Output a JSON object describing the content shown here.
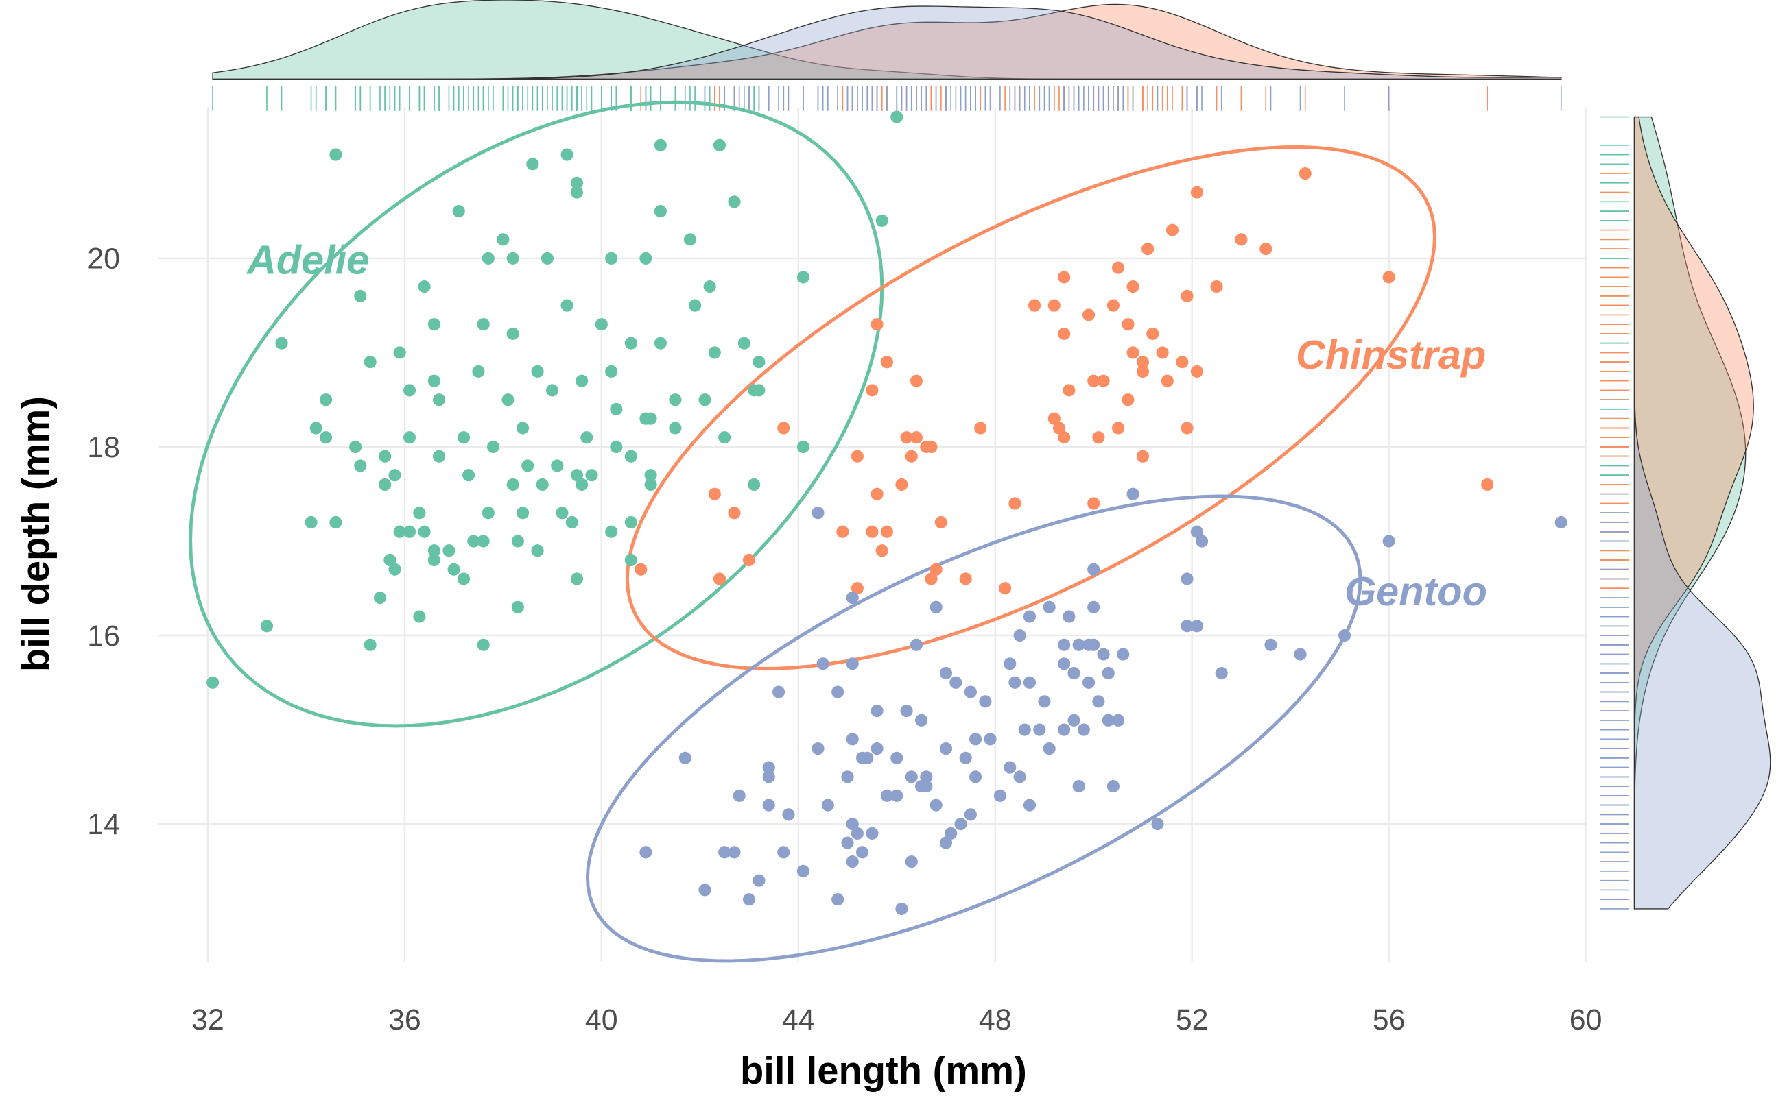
{
  "chart_data": {
    "type": "scatter",
    "x_label": "bill length (mm)",
    "y_label": "bill depth (mm)",
    "xlim": [
      31,
      60
    ],
    "ylim": [
      12.3,
      21.6
    ],
    "xticks": [
      32,
      36,
      40,
      44,
      48,
      52,
      56,
      60
    ],
    "yticks": [
      14,
      16,
      18,
      20
    ],
    "grid": true,
    "series": [
      {
        "name": "Adelie",
        "color": "#66c2a5",
        "x": [
          32.1,
          34.6,
          38.6,
          39.3,
          41.2,
          42.4,
          39.5,
          39.5,
          37.1,
          41.2,
          42.7,
          38.0,
          41.8,
          37.7,
          38.2,
          38.9,
          40.2,
          40.9,
          44.1,
          35.1,
          36.4,
          42.2,
          41.9,
          39.3,
          33.5,
          35.9,
          35.3,
          36.6,
          37.6,
          38.2,
          40.0,
          40.6,
          41.2,
          42.9,
          42.3,
          43.2,
          34.4,
          36.1,
          36.6,
          36.7,
          37.5,
          38.1,
          38.7,
          39.0,
          39.6,
          40.2,
          40.3,
          40.9,
          41.0,
          41.5,
          42.1,
          43.1,
          43.2,
          34.2,
          34.4,
          35.0,
          36.1,
          36.7,
          37.2,
          37.8,
          38.4,
          39.7,
          40.3,
          40.6,
          41.5,
          42.5,
          44.1,
          35.1,
          35.6,
          35.8,
          37.3,
          38.5,
          39.1,
          39.5,
          39.8,
          41.0,
          35.6,
          36.3,
          38.2,
          38.8,
          39.6,
          41.0,
          43.1,
          34.1,
          34.6,
          35.9,
          36.1,
          36.4,
          37.7,
          38.4,
          39.2,
          39.4,
          40.2,
          40.6,
          36.9,
          36.6,
          37.4,
          37.6,
          38.3,
          38.7,
          35.7,
          37.0,
          36.6,
          40.6,
          37.2,
          39.5,
          35.8,
          35.5,
          38.3,
          36.3,
          33.2,
          35.3,
          37.6,
          46.0,
          45.7,
          45.8
        ],
        "values": [
          15.5,
          21.1,
          21.0,
          21.1,
          21.2,
          21.2,
          20.8,
          20.7,
          20.5,
          20.5,
          20.6,
          20.2,
          20.2,
          20.0,
          20.0,
          20.0,
          20.0,
          20.0,
          19.8,
          19.6,
          19.7,
          19.7,
          19.5,
          19.5,
          19.1,
          19.0,
          18.9,
          19.3,
          19.3,
          19.2,
          19.3,
          19.1,
          19.1,
          19.1,
          19.0,
          18.9,
          18.5,
          18.6,
          18.7,
          18.5,
          18.8,
          18.5,
          18.8,
          18.6,
          18.7,
          18.8,
          18.4,
          18.3,
          18.3,
          18.5,
          18.5,
          18.6,
          18.6,
          18.2,
          18.1,
          18.0,
          18.1,
          17.9,
          18.1,
          18.0,
          18.2,
          18.1,
          18.0,
          17.9,
          18.2,
          18.1,
          18.0,
          17.8,
          17.9,
          17.7,
          17.7,
          17.8,
          17.8,
          17.7,
          17.7,
          17.7,
          17.6,
          17.3,
          17.6,
          17.6,
          17.6,
          17.6,
          17.6,
          17.2,
          17.2,
          17.1,
          17.1,
          17.1,
          17.3,
          17.3,
          17.3,
          17.2,
          17.1,
          17.2,
          16.9,
          16.9,
          17.0,
          17.0,
          17.0,
          16.9,
          16.8,
          16.7,
          16.8,
          16.8,
          16.6,
          16.6,
          16.7,
          16.4,
          16.3,
          16.2,
          16.1,
          15.9,
          15.9,
          21.5,
          20.4,
          18.9
        ]
      },
      {
        "name": "Chinstrap",
        "color": "#fc8d62",
        "x": [
          54.3,
          52.1,
          51.6,
          51.1,
          53.0,
          53.5,
          56.0,
          49.4,
          50.5,
          50.8,
          51.9,
          52.5,
          48.8,
          49.2,
          49.9,
          50.4,
          50.7,
          51.2,
          49.4,
          51.4,
          50.8,
          51.0,
          51.8,
          52.1,
          51.0,
          50.0,
          50.2,
          49.5,
          51.5,
          50.7,
          49.2,
          49.3,
          50.5,
          51.9,
          49.4,
          50.1,
          45.6,
          45.8,
          45.5,
          46.4,
          43.7,
          46.2,
          46.4,
          47.7,
          46.6,
          46.7,
          46.3,
          45.2,
          51.0,
          46.1,
          42.3,
          45.6,
          48.4,
          50.0,
          42.7,
          46.9,
          58.0,
          44.9,
          45.5,
          45.8,
          45.7,
          43.0,
          40.8,
          46.8,
          46.7,
          47.4,
          42.4,
          45.2,
          48.2
        ],
        "values": [
          20.9,
          20.7,
          20.3,
          20.1,
          20.2,
          20.1,
          19.8,
          19.8,
          19.9,
          19.7,
          19.6,
          19.7,
          19.5,
          19.5,
          19.4,
          19.5,
          19.3,
          19.2,
          19.2,
          19.0,
          19.0,
          18.9,
          18.9,
          18.8,
          18.8,
          18.7,
          18.7,
          18.6,
          18.7,
          18.5,
          18.3,
          18.2,
          18.2,
          18.2,
          18.1,
          18.1,
          19.3,
          18.9,
          18.6,
          18.7,
          18.2,
          18.1,
          18.1,
          18.2,
          18.0,
          18.0,
          17.9,
          17.9,
          17.9,
          17.6,
          17.5,
          17.5,
          17.4,
          17.4,
          17.3,
          17.2,
          17.6,
          17.1,
          17.1,
          17.1,
          16.9,
          16.8,
          16.7,
          16.7,
          16.6,
          16.6,
          16.6,
          16.5,
          16.5
        ]
      },
      {
        "name": "Gentoo",
        "color": "#8da0cb",
        "x": [
          44.4,
          50.8,
          52.1,
          52.2,
          56.0,
          59.5,
          50.0,
          51.9,
          45.1,
          50.0,
          46.8,
          49.1,
          49.5,
          51.9,
          52.1,
          48.7,
          48.5,
          49.7,
          49.4,
          49.9,
          50.0,
          50.2,
          50.6,
          53.6,
          54.2,
          55.1,
          46.4,
          44.5,
          48.3,
          52.6,
          49.4,
          50.3,
          45.1,
          47.0,
          48.4,
          48.7,
          49.6,
          49.9,
          47.2,
          47.5,
          44.8,
          43.6,
          50.1,
          47.8,
          49.0,
          46.2,
          46.5,
          45.6,
          49.6,
          49.8,
          50.3,
          50.5,
          49.4,
          48.6,
          48.9,
          47.6,
          47.9,
          49.1,
          47.0,
          47.4,
          45.1,
          44.4,
          45.6,
          45.3,
          45.4,
          46.0,
          41.7,
          43.4,
          46.6,
          47.6,
          48.3,
          48.5,
          48.7,
          49.7,
          50.4,
          43.4,
          45.0,
          46.3,
          46.5,
          46.6,
          44.6,
          42.8,
          43.4,
          45.8,
          46.0,
          46.8,
          47.5,
          48.1,
          43.8,
          51.3,
          45.1,
          47.1,
          45.5,
          45.2,
          47.3,
          43.7,
          45.0,
          42.5,
          42.7,
          40.9,
          45.3,
          46.3,
          45.1,
          47.0,
          44.1,
          43.2,
          42.1,
          43.0,
          44.8,
          46.1
        ],
        "values": [
          17.3,
          17.5,
          17.1,
          17.0,
          17.0,
          17.2,
          16.7,
          16.6,
          16.4,
          16.3,
          16.3,
          16.3,
          16.2,
          16.1,
          16.1,
          16.2,
          16.0,
          15.9,
          15.9,
          15.9,
          15.9,
          15.8,
          15.8,
          15.9,
          15.8,
          16.0,
          15.9,
          15.7,
          15.7,
          15.6,
          15.7,
          15.6,
          15.7,
          15.6,
          15.5,
          15.5,
          15.6,
          15.5,
          15.5,
          15.4,
          15.4,
          15.4,
          15.3,
          15.3,
          15.3,
          15.2,
          15.1,
          15.2,
          15.1,
          15.0,
          15.1,
          15.1,
          15.0,
          15.0,
          15.0,
          14.9,
          14.9,
          14.8,
          14.8,
          14.7,
          14.9,
          14.8,
          14.8,
          14.7,
          14.7,
          14.7,
          14.7,
          14.6,
          14.5,
          14.5,
          14.6,
          14.5,
          14.2,
          14.4,
          14.4,
          14.5,
          14.5,
          14.5,
          14.4,
          14.4,
          14.2,
          14.3,
          14.2,
          14.3,
          14.3,
          14.2,
          14.1,
          14.3,
          14.1,
          14.0,
          14.0,
          13.9,
          13.9,
          13.9,
          14.0,
          13.7,
          13.8,
          13.7,
          13.7,
          13.7,
          13.7,
          13.6,
          13.6,
          13.8,
          13.5,
          13.4,
          13.3,
          13.2,
          13.2,
          13.1
        ]
      }
    ]
  }
}
